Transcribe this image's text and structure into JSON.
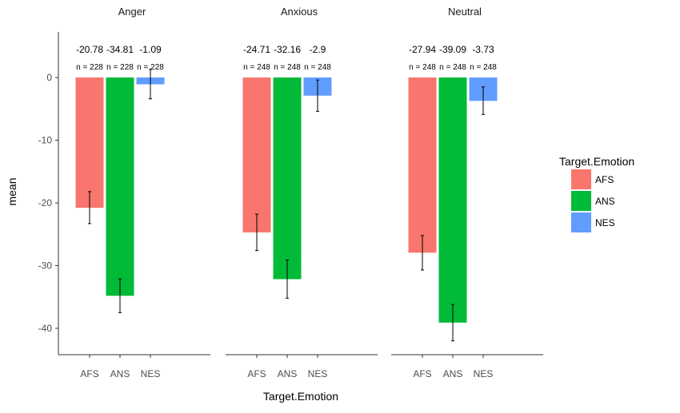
{
  "chart_data": {
    "type": "bar",
    "facets": [
      "Anger",
      "Anxious",
      "Neutral"
    ],
    "categories": [
      "AFS",
      "ANS",
      "NES"
    ],
    "colors": {
      "AFS": "#F8766D",
      "ANS": "#00BA38",
      "NES": "#619CFF"
    },
    "values": [
      [
        -20.78,
        -34.81,
        -1.09
      ],
      [
        -24.71,
        -32.16,
        -2.9
      ],
      [
        -27.94,
        -39.09,
        -3.73
      ]
    ],
    "value_labels": [
      [
        "-20.78",
        "-34.81",
        "-1.09"
      ],
      [
        "-24.71",
        "-32.16",
        "-2.9"
      ],
      [
        "-27.94",
        "-39.09",
        "-3.73"
      ]
    ],
    "error_bars": [
      [
        [
          -23.3,
          -18.2
        ],
        [
          -37.5,
          -32.1
        ],
        [
          -3.4,
          1.3
        ]
      ],
      [
        [
          -27.6,
          -21.8
        ],
        [
          -35.2,
          -29.1
        ],
        [
          -5.4,
          -0.4
        ]
      ],
      [
        [
          -30.7,
          -25.2
        ],
        [
          -42.0,
          -36.2
        ],
        [
          -5.9,
          -1.5
        ]
      ]
    ],
    "n_labels": [
      [
        "n = 228",
        "n = 228",
        "n = 228"
      ],
      [
        "n = 248",
        "n = 248",
        "n = 248"
      ],
      [
        "n = 248",
        "n = 248",
        "n = 248"
      ]
    ],
    "xlabel": "Target.Emotion",
    "ylabel": "mean",
    "yticks": [
      0,
      -10,
      -20,
      -30,
      -40
    ],
    "ylim": [
      -44.2,
      7
    ],
    "legend": {
      "title": "Target.Emotion",
      "entries": [
        "AFS",
        "ANS",
        "NES"
      ],
      "position": "right"
    },
    "grid": false
  }
}
